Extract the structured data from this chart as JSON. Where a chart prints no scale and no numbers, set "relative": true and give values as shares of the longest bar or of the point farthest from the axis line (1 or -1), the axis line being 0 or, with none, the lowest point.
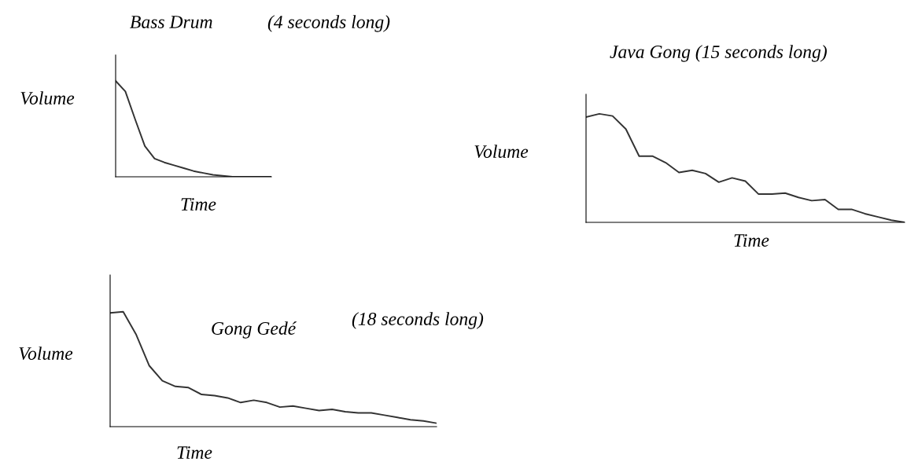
{
  "chart_data": [
    {
      "type": "line",
      "title": "Bass Drum",
      "subtitle": "(4 seconds long)",
      "xlabel": "Time",
      "ylabel": "Volume",
      "relative": true,
      "color": "#333333",
      "categories": [
        null,
        null,
        null,
        null,
        null,
        null,
        null,
        null,
        null,
        null,
        null,
        null,
        null,
        null,
        null,
        null,
        null
      ],
      "values": [
        1.0,
        0.89,
        0.6,
        0.32,
        0.19,
        0.15,
        0.12,
        0.09,
        0.06,
        0.04,
        0.02,
        0.01,
        0,
        0,
        0,
        0,
        0
      ]
    },
    {
      "type": "line",
      "title": "Java Gong (15 seconds long)",
      "xlabel": "Time",
      "ylabel": "Volume",
      "relative": true,
      "color": "#333333",
      "categories": [
        null,
        null,
        null,
        null,
        null,
        null,
        null,
        null,
        null,
        null,
        null,
        null,
        null,
        null,
        null,
        null,
        null,
        null,
        null,
        null,
        null,
        null,
        null,
        null,
        null
      ],
      "values": [
        0.97,
        1.0,
        0.98,
        0.86,
        0.61,
        0.61,
        0.55,
        0.46,
        0.48,
        0.45,
        0.37,
        0.41,
        0.38,
        0.26,
        0.26,
        0.27,
        0.23,
        0.2,
        0.21,
        0.12,
        0.12,
        0.08,
        0.05,
        0.02,
        0
      ]
    },
    {
      "type": "line",
      "title": "Gong Gedé",
      "subtitle": "(18 seconds long)",
      "xlabel": "Time",
      "ylabel": "Volume",
      "relative": true,
      "color": "#333333",
      "categories": [
        null,
        null,
        null,
        null,
        null,
        null,
        null,
        null,
        null,
        null,
        null,
        null,
        null,
        null,
        null,
        null,
        null,
        null,
        null,
        null,
        null,
        null,
        null,
        null,
        null,
        null
      ],
      "values": [
        0.99,
        1.0,
        0.8,
        0.53,
        0.4,
        0.35,
        0.34,
        0.28,
        0.27,
        0.25,
        0.21,
        0.23,
        0.21,
        0.17,
        0.18,
        0.16,
        0.14,
        0.15,
        0.13,
        0.12,
        0.12,
        0.1,
        0.08,
        0.06,
        0.05,
        0.03
      ]
    }
  ]
}
